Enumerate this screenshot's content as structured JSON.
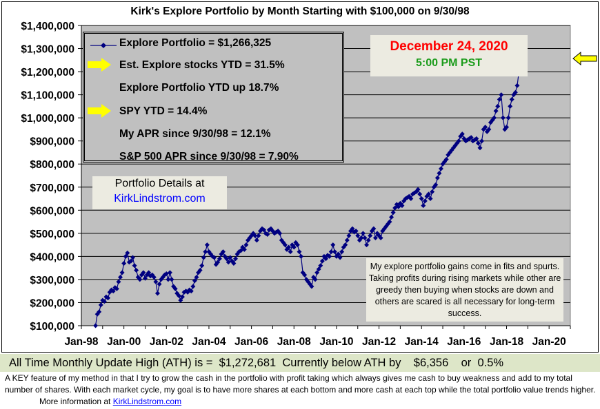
{
  "chart_data": {
    "type": "line",
    "title": "Kirk's Explore Portfolio by Month Starting with $100,000 on 9/30/98",
    "xlabel": "",
    "ylabel": "",
    "ylim": [
      100000,
      1400000
    ],
    "xlim": [
      "Jan-98",
      "Jan-21"
    ],
    "y_ticks": [
      "$100,000",
      "$200,000",
      "$300,000",
      "$400,000",
      "$500,000",
      "$600,000",
      "$700,000",
      "$800,000",
      "$900,000",
      "$1,000,000",
      "$1,100,000",
      "$1,200,000",
      "$1,300,000",
      "$1,400,000"
    ],
    "x_ticks": [
      "Jan-98",
      "Jan-00",
      "Jan-02",
      "Jan-04",
      "Jan-06",
      "Jan-08",
      "Jan-10",
      "Jan-12",
      "Jan-14",
      "Jan-16",
      "Jan-18",
      "Jan-20"
    ],
    "grid": "horizontal",
    "plot_background": "#c0c0c0",
    "series_color": "#000080",
    "series": [
      {
        "name": "Explore Portfolio",
        "start": "Sep-98",
        "frequency": "monthly",
        "values": [
          100000,
          150000,
          160000,
          190000,
          210000,
          205000,
          225000,
          220000,
          245000,
          255000,
          250000,
          265000,
          260000,
          290000,
          310000,
          330000,
          370000,
          400000,
          415000,
          375000,
          380000,
          395000,
          360000,
          340000,
          310000,
          300000,
          320000,
          330000,
          305000,
          320000,
          330000,
          315000,
          320000,
          310000,
          290000,
          240000,
          280000,
          300000,
          310000,
          320000,
          325000,
          300000,
          330000,
          300000,
          270000,
          260000,
          240000,
          230000,
          210000,
          225000,
          245000,
          250000,
          245000,
          255000,
          250000,
          270000,
          295000,
          310000,
          330000,
          340000,
          360000,
          395000,
          420000,
          450000,
          420000,
          410000,
          400000,
          395000,
          365000,
          375000,
          390000,
          410000,
          420000,
          400000,
          390000,
          375000,
          395000,
          380000,
          370000,
          390000,
          410000,
          420000,
          425000,
          440000,
          430000,
          450000,
          470000,
          480000,
          490000,
          500000,
          490000,
          470000,
          490000,
          510000,
          520000,
          515000,
          500000,
          495000,
          515000,
          520000,
          510000,
          500000,
          505000,
          510000,
          500000,
          470000,
          460000,
          450000,
          430000,
          440000,
          420000,
          450000,
          440000,
          460000,
          450000,
          420000,
          400000,
          330000,
          320000,
          300000,
          290000,
          280000,
          270000,
          310000,
          300000,
          330000,
          345000,
          360000,
          380000,
          400000,
          390000,
          405000,
          400000,
          420000,
          450000,
          420000,
          400000,
          410000,
          395000,
          420000,
          440000,
          450000,
          470000,
          490000,
          510000,
          520000,
          505000,
          510000,
          490000,
          470000,
          480000,
          500000,
          480000,
          450000,
          470000,
          490000,
          510000,
          520000,
          480000,
          500000,
          490000,
          480000,
          510000,
          520000,
          530000,
          540000,
          550000,
          570000,
          590000,
          610000,
          625000,
          615000,
          630000,
          620000,
          640000,
          650000,
          655000,
          660000,
          650000,
          670000,
          675000,
          680000,
          690000,
          670000,
          650000,
          620000,
          640000,
          660000,
          670000,
          650000,
          680000,
          700000,
          710000,
          740000,
          760000,
          780000,
          800000,
          810000,
          820000,
          840000,
          850000,
          860000,
          870000,
          880000,
          890000,
          900000,
          920000,
          930000,
          910000,
          900000,
          905000,
          910000,
          915000,
          900000,
          905000,
          910000,
          890000,
          870000,
          900000,
          950000,
          960000,
          940000,
          950000,
          980000,
          990000,
          1000000,
          1030000,
          1050000,
          1080000,
          1100000,
          1000000,
          950000,
          960000,
          1000000,
          1050000,
          1080000,
          1100000,
          1110000,
          1140000,
          1200000,
          1266325
        ]
      }
    ]
  },
  "legend": {
    "series_label": "Explore Portfolio  =  $1,266,325",
    "rows": [
      "Est. Explore stocks YTD =  31.5%",
      "Explore Portfolio YTD up 18.7%",
      "SPY YTD =  14.4%",
      "My APR since 9/30/98 =  12.1%",
      "S&P 500 APR since 9/30/98 =  7.90%"
    ],
    "arrow_color": "#ffff00"
  },
  "date_box": {
    "date": "December 24, 2020",
    "time": "5:00 PM PST",
    "date_color": "#ff0000",
    "time_color": "#1a9b1a"
  },
  "details_box": {
    "line1": "Portfolio Details at",
    "link": "KirkLindstrom.com"
  },
  "note_box": {
    "text": "My explore portfolio gains come in fits and spurts. Taking profits during rising markets while other are greedy then buying when stocks are down and others are scared is all necessary for long-term success."
  },
  "ath_bar": {
    "label": "All Time Monthly Update High (ATH) is =",
    "ath_value": "$1,272,681",
    "below_label": "Currently below ATH by",
    "below_amount": "$6,356",
    "or_label": "or",
    "below_pct": "0.5%"
  },
  "footer": {
    "text": "A KEY feature of my method in that I try to grow the cash in the portfolio with profit taking which always gives me cash to buy weakness and add to my total number of shares.  With each market cycle, my goal is to have more shares at each bottom and more cash at each top while the total portfolio value trends higher.",
    "more_info": "More information at",
    "link": "KirkLindstrom.com"
  }
}
